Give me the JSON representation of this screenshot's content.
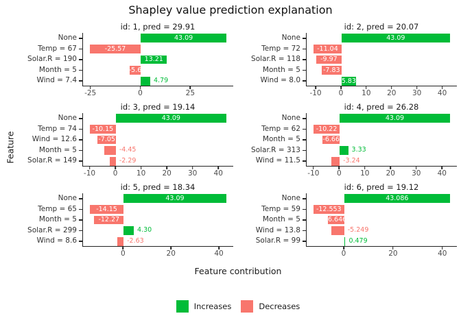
{
  "title": "Shapley value prediction explanation",
  "axis": {
    "x_label": "Feature contribution",
    "y_label": "Feature"
  },
  "colors": {
    "increase": "#00BC38",
    "decrease": "#F8766D",
    "spine": "#222222",
    "tick_text": "#4D4D4D"
  },
  "legend": [
    {
      "label": "Increases",
      "color": "#00BC38"
    },
    {
      "label": "Decreases",
      "color": "#F8766D"
    }
  ],
  "chart_data": {
    "type": "bar",
    "orientation": "horizontal",
    "grid": false,
    "legend_position": "bottom",
    "facets": [
      {
        "title": "id: 1, pred = 29.91",
        "xlim": [
          -29.0,
          46.5
        ],
        "xticks": [
          -25,
          0,
          25
        ],
        "bars": [
          {
            "label": "None",
            "value": 43.09,
            "text": "43.09",
            "inside": true
          },
          {
            "label": "Temp = 67",
            "value": -25.57,
            "text": "-25.57",
            "inside": true
          },
          {
            "label": "Solar.R = 190",
            "value": 13.21,
            "text": "13.21",
            "inside": true
          },
          {
            "label": "Month = 5",
            "value": -5.6,
            "text": "-5.6",
            "inside": true
          },
          {
            "label": "Wind = 7.4",
            "value": 4.79,
            "text": "4.79",
            "inside": false
          }
        ]
      },
      {
        "title": "id: 2, pred = 20.07",
        "xlim": [
          -13.8,
          45.8
        ],
        "xticks": [
          -10,
          0,
          10,
          20,
          30,
          40
        ],
        "bars": [
          {
            "label": "None",
            "value": 43.09,
            "text": "43.09",
            "inside": true
          },
          {
            "label": "Temp = 72",
            "value": -11.04,
            "text": "-11.04",
            "inside": true
          },
          {
            "label": "Solar.R = 118",
            "value": -9.97,
            "text": "-9.97",
            "inside": true
          },
          {
            "label": "Month = 5",
            "value": -7.83,
            "text": "-7.83",
            "inside": true
          },
          {
            "label": "Wind = 8.0",
            "value": 5.83,
            "text": "5.83",
            "inside": true
          }
        ]
      },
      {
        "title": "id: 3, pred = 19.14",
        "xlim": [
          -12.8,
          45.8
        ],
        "xticks": [
          -10,
          0,
          10,
          20,
          30,
          40
        ],
        "bars": [
          {
            "label": "None",
            "value": 43.09,
            "text": "43.09",
            "inside": true
          },
          {
            "label": "Temp = 74",
            "value": -10.15,
            "text": "-10.15",
            "inside": true
          },
          {
            "label": "Wind = 12.6",
            "value": -7.05,
            "text": "-7.05",
            "inside": true
          },
          {
            "label": "Month = 5",
            "value": -4.45,
            "text": "-4.45",
            "inside": false
          },
          {
            "label": "Solar.R = 149",
            "value": -2.29,
            "text": "-2.29",
            "inside": false
          }
        ]
      },
      {
        "title": "id: 4, pred = 26.28",
        "xlim": [
          -12.9,
          45.8
        ],
        "xticks": [
          -10,
          0,
          10,
          20,
          30,
          40
        ],
        "bars": [
          {
            "label": "None",
            "value": 43.09,
            "text": "43.09",
            "inside": true
          },
          {
            "label": "Temp = 62",
            "value": -10.22,
            "text": "-10.22",
            "inside": true
          },
          {
            "label": "Month = 5",
            "value": -6.66,
            "text": "-6.66",
            "inside": true
          },
          {
            "label": "Solar.R = 313",
            "value": 3.33,
            "text": "3.33",
            "inside": false
          },
          {
            "label": "Wind = 11.5",
            "value": -3.24,
            "text": "-3.24",
            "inside": false
          }
        ]
      },
      {
        "title": "id: 5, pred = 18.34",
        "xlim": [
          -17.0,
          46.0
        ],
        "xticks": [
          0,
          20,
          40
        ],
        "bars": [
          {
            "label": "None",
            "value": 43.09,
            "text": "43.09",
            "inside": true
          },
          {
            "label": "Temp = 65",
            "value": -14.15,
            "text": "-14.15",
            "inside": true
          },
          {
            "label": "Month = 5",
            "value": -12.27,
            "text": "-12.27",
            "inside": true
          },
          {
            "label": "Solar.R = 299",
            "value": 4.3,
            "text": "4.30",
            "inside": false
          },
          {
            "label": "Wind = 8.6",
            "value": -2.63,
            "text": "-2.63",
            "inside": false
          }
        ]
      },
      {
        "title": "id: 6, pred = 19.12",
        "xlim": [
          -15.3,
          45.9
        ],
        "xticks": [
          0,
          20,
          40
        ],
        "bars": [
          {
            "label": "None",
            "value": 43.086,
            "text": "43.086",
            "inside": true
          },
          {
            "label": "Temp = 59",
            "value": -12.553,
            "text": "-12.553",
            "inside": true
          },
          {
            "label": "Month = 5",
            "value": -6.646,
            "text": "-6.646",
            "inside": true
          },
          {
            "label": "Wind = 13.8",
            "value": -5.249,
            "text": "-5.249",
            "inside": false
          },
          {
            "label": "Solar.R = 99",
            "value": 0.479,
            "text": "0.479",
            "inside": false
          }
        ]
      }
    ]
  }
}
